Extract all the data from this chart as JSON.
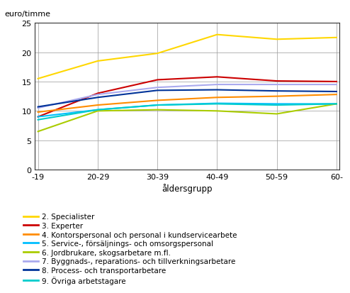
{
  "x_labels": [
    "-19",
    "20-29",
    "30-39",
    "40-49",
    "50-59",
    "60-"
  ],
  "x_values": [
    0,
    1,
    2,
    3,
    4,
    5
  ],
  "series": {
    "2. Specialister": {
      "color": "#FFD700",
      "values": [
        15.5,
        18.5,
        19.8,
        23.0,
        22.2,
        22.5
      ]
    },
    "3. Experter": {
      "color": "#CC0000",
      "values": [
        9.0,
        13.0,
        15.3,
        15.8,
        15.1,
        15.0
      ]
    },
    "4. Kontorspersonal och personal i kundservicearbete": {
      "color": "#FF8C00",
      "values": [
        9.8,
        11.0,
        11.8,
        12.3,
        12.5,
        12.8
      ]
    },
    "5. Service-, försäljnings- och omsorgspersonal": {
      "color": "#00BFFF",
      "values": [
        9.0,
        10.2,
        11.0,
        11.3,
        11.2,
        11.2
      ]
    },
    "6. Jordbrukare, skogsarbetare m.fl.": {
      "color": "#AACC00",
      "values": [
        6.5,
        10.0,
        10.2,
        10.0,
        9.5,
        11.2
      ]
    },
    "7. Byggnads-, reparations- och tillverkningsarbetare": {
      "color": "#AAAAEE",
      "values": [
        10.5,
        12.8,
        14.0,
        14.5,
        14.5,
        14.5
      ]
    },
    "8. Process- och transportarbetare": {
      "color": "#003399",
      "values": [
        10.7,
        12.3,
        13.5,
        13.6,
        13.4,
        13.3
      ]
    },
    "9. Övriga arbetstagare": {
      "color": "#00CCCC",
      "values": [
        8.5,
        10.2,
        11.0,
        11.2,
        11.0,
        11.2
      ]
    }
  },
  "ylabel": "euro/timme",
  "xlabel": "åldersgrupp",
  "ylim": [
    0,
    25
  ],
  "yticks": [
    0,
    5,
    10,
    15,
    20,
    25
  ],
  "background_color": "#ffffff",
  "grid_color": "#999999",
  "line_width": 1.5,
  "legend_fontsize": 7.5
}
